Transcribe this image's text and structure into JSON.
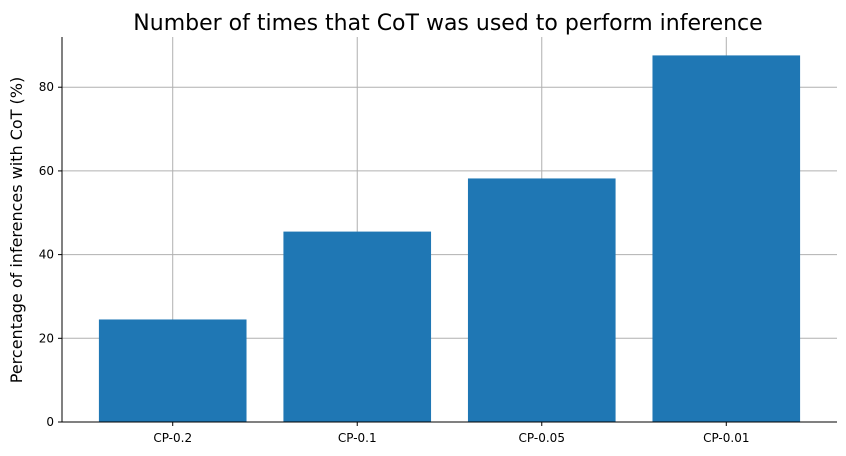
{
  "chart_data": {
    "type": "bar",
    "title": "Number of times that CoT was used to perform inference",
    "xlabel": "",
    "ylabel": "Percentage of inferences with CoT (%)",
    "categories": [
      "CP-0.2",
      "CP-0.1",
      "CP-0.05",
      "CP-0.01"
    ],
    "values": [
      24.5,
      45.5,
      58.2,
      87.6
    ],
    "ylim": [
      0,
      92
    ],
    "yticks": [
      0,
      20,
      40,
      60,
      80
    ],
    "grid": true,
    "bar_color": "#1f77b4"
  }
}
